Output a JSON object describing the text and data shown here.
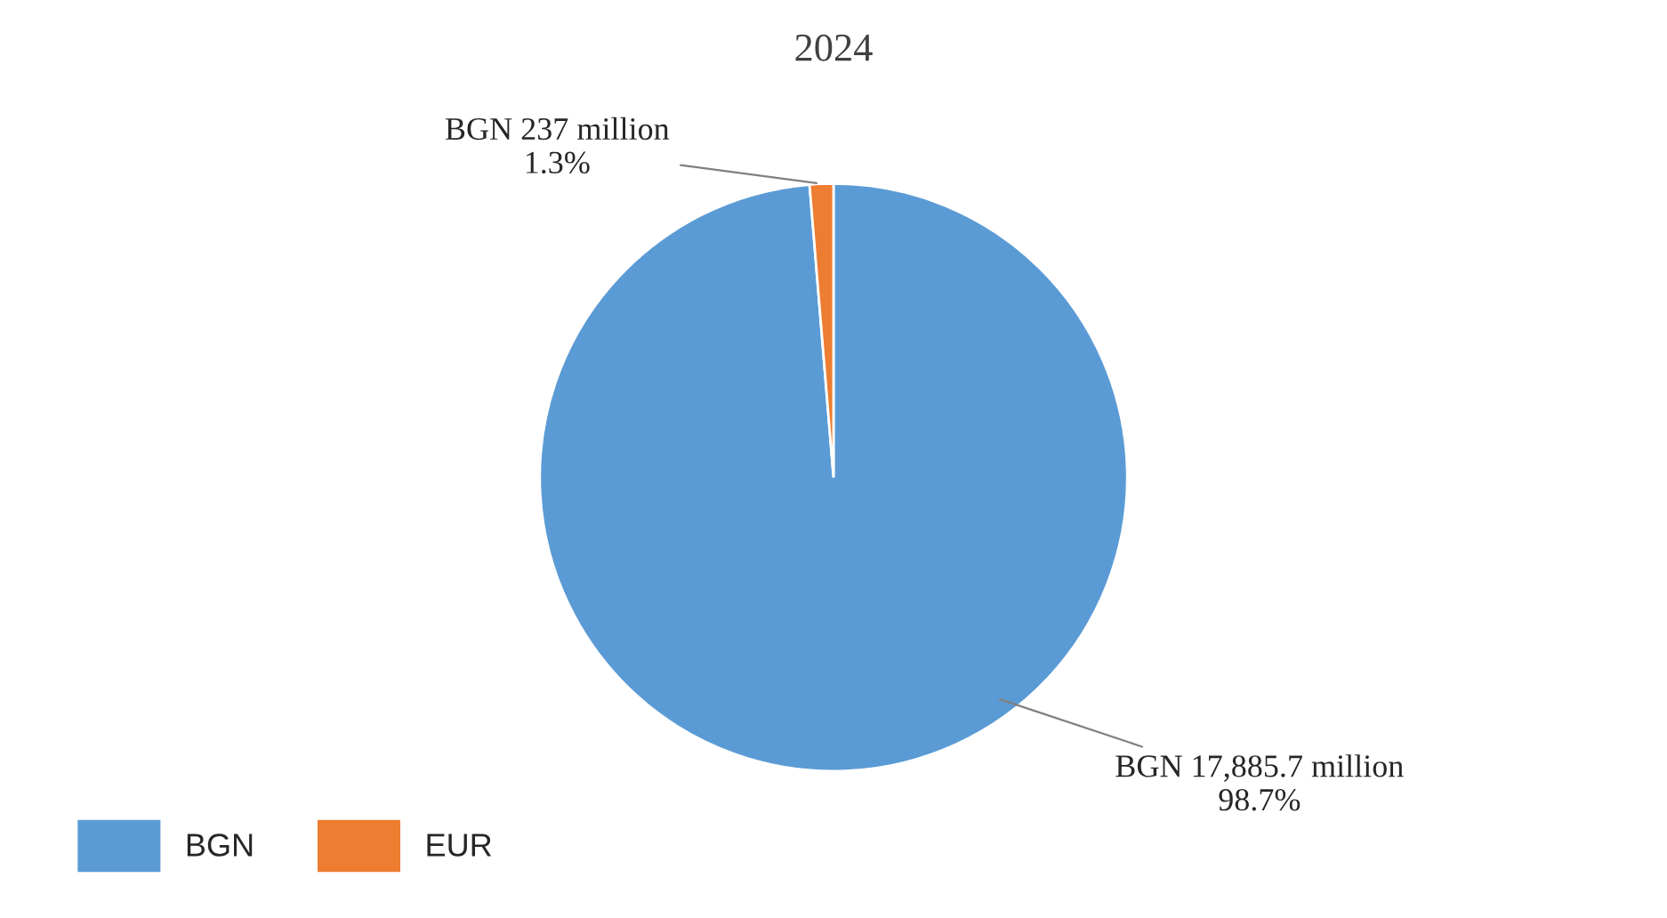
{
  "chart_data": {
    "type": "pie",
    "title": "2024",
    "categories": [
      "BGN",
      "EUR"
    ],
    "values": [
      98.7,
      1.3
    ],
    "colors": [
      "#5b9bd5",
      "#ed7d31"
    ],
    "value_labels": [
      "BGN 17,885.7 million\n98.7%",
      "BGN 237 million\n1.3%"
    ],
    "legend": "bottom left"
  }
}
